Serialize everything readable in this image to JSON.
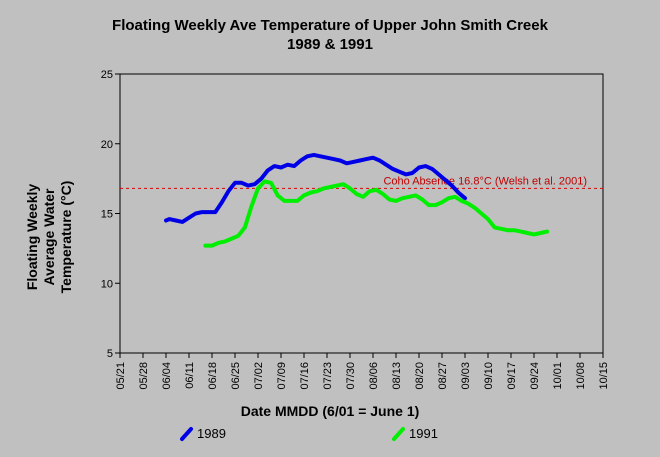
{
  "chart_data": {
    "type": "line",
    "title": "Floating Weekly Ave Temperature of Upper John Smith Creek",
    "subtitle": "1989 & 1991",
    "xlabel": "Date MMDD (6/01 = June 1)",
    "ylabel_lines": [
      "Floating Weekly",
      "Average Water",
      "Temperature (°C)"
    ],
    "x_tick_labels": [
      "05/21",
      "05/28",
      "06/04",
      "06/11",
      "06/18",
      "06/25",
      "07/02",
      "07/09",
      "07/16",
      "07/23",
      "07/30",
      "08/06",
      "08/13",
      "08/20",
      "08/27",
      "09/03",
      "09/10",
      "09/17",
      "09/24",
      "10/01",
      "10/08",
      "10/15"
    ],
    "ylim": [
      5,
      25
    ],
    "y_ticks": [
      5,
      10,
      15,
      20,
      25
    ],
    "grid": false,
    "legend_placement": "bottom",
    "reference_line": {
      "value": 16.8,
      "label": "Coho Absence 16.8°C (Welsh et al. 2001)",
      "color": "#e00000"
    },
    "series": [
      {
        "name": "1989",
        "color": "#0000e6",
        "points": [
          [
            "06/04",
            14.5
          ],
          [
            "06/05",
            14.6
          ],
          [
            "06/07",
            14.5
          ],
          [
            "06/09",
            14.4
          ],
          [
            "06/11",
            14.7
          ],
          [
            "06/13",
            15.0
          ],
          [
            "06/15",
            15.1
          ],
          [
            "06/17",
            15.1
          ],
          [
            "06/19",
            15.1
          ],
          [
            "06/21",
            15.8
          ],
          [
            "06/23",
            16.6
          ],
          [
            "06/25",
            17.2
          ],
          [
            "06/27",
            17.2
          ],
          [
            "06/29",
            17.0
          ],
          [
            "07/01",
            17.1
          ],
          [
            "07/03",
            17.5
          ],
          [
            "07/05",
            18.1
          ],
          [
            "07/07",
            18.4
          ],
          [
            "07/09",
            18.3
          ],
          [
            "07/11",
            18.5
          ],
          [
            "07/13",
            18.4
          ],
          [
            "07/15",
            18.8
          ],
          [
            "07/17",
            19.1
          ],
          [
            "07/19",
            19.2
          ],
          [
            "07/21",
            19.1
          ],
          [
            "07/23",
            19.0
          ],
          [
            "07/25",
            18.9
          ],
          [
            "07/27",
            18.8
          ],
          [
            "07/29",
            18.6
          ],
          [
            "07/31",
            18.7
          ],
          [
            "08/02",
            18.8
          ],
          [
            "08/04",
            18.9
          ],
          [
            "08/06",
            19.0
          ],
          [
            "08/08",
            18.8
          ],
          [
            "08/10",
            18.5
          ],
          [
            "08/12",
            18.2
          ],
          [
            "08/14",
            18.0
          ],
          [
            "08/16",
            17.8
          ],
          [
            "08/18",
            17.9
          ],
          [
            "08/20",
            18.3
          ],
          [
            "08/22",
            18.4
          ],
          [
            "08/24",
            18.2
          ],
          [
            "08/26",
            17.8
          ],
          [
            "08/28",
            17.4
          ],
          [
            "08/30",
            17.0
          ],
          [
            "09/01",
            16.5
          ],
          [
            "09/03",
            16.1
          ]
        ]
      },
      {
        "name": "1991",
        "color": "#00ee00",
        "points": [
          [
            "06/16",
            12.7
          ],
          [
            "06/18",
            12.7
          ],
          [
            "06/20",
            12.9
          ],
          [
            "06/22",
            13.0
          ],
          [
            "06/24",
            13.2
          ],
          [
            "06/26",
            13.4
          ],
          [
            "06/28",
            14.0
          ],
          [
            "06/30",
            15.5
          ],
          [
            "07/02",
            16.8
          ],
          [
            "07/04",
            17.3
          ],
          [
            "07/06",
            17.2
          ],
          [
            "07/08",
            16.3
          ],
          [
            "07/10",
            15.9
          ],
          [
            "07/12",
            15.9
          ],
          [
            "07/14",
            15.9
          ],
          [
            "07/16",
            16.3
          ],
          [
            "07/18",
            16.5
          ],
          [
            "07/20",
            16.6
          ],
          [
            "07/22",
            16.8
          ],
          [
            "07/24",
            16.9
          ],
          [
            "07/26",
            17.0
          ],
          [
            "07/28",
            17.1
          ],
          [
            "07/30",
            16.8
          ],
          [
            "08/01",
            16.4
          ],
          [
            "08/03",
            16.2
          ],
          [
            "08/05",
            16.6
          ],
          [
            "08/07",
            16.7
          ],
          [
            "08/09",
            16.4
          ],
          [
            "08/11",
            16.0
          ],
          [
            "08/13",
            15.9
          ],
          [
            "08/15",
            16.1
          ],
          [
            "08/17",
            16.2
          ],
          [
            "08/19",
            16.3
          ],
          [
            "08/21",
            16.0
          ],
          [
            "08/23",
            15.6
          ],
          [
            "08/25",
            15.6
          ],
          [
            "08/27",
            15.8
          ],
          [
            "08/29",
            16.1
          ],
          [
            "08/31",
            16.2
          ],
          [
            "09/02",
            15.9
          ],
          [
            "09/04",
            15.7
          ],
          [
            "09/06",
            15.4
          ],
          [
            "09/08",
            15.0
          ],
          [
            "09/10",
            14.6
          ],
          [
            "09/12",
            14.0
          ],
          [
            "09/14",
            13.9
          ],
          [
            "09/16",
            13.8
          ],
          [
            "09/18",
            13.8
          ],
          [
            "09/20",
            13.7
          ],
          [
            "09/22",
            13.6
          ],
          [
            "09/24",
            13.5
          ],
          [
            "09/26",
            13.6
          ],
          [
            "09/28",
            13.7
          ]
        ]
      }
    ]
  }
}
